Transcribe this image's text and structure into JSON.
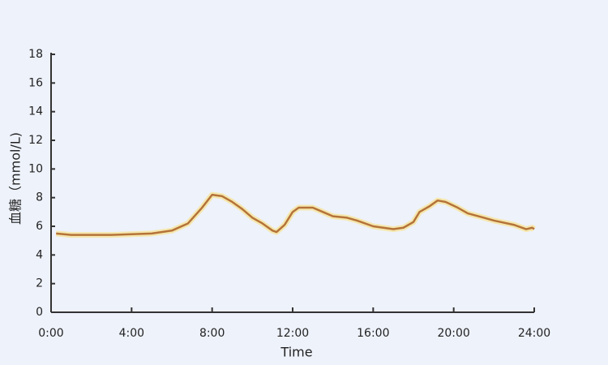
{
  "chart_data": {
    "type": "line",
    "xlabel": "Time",
    "ylabel": "血糖（mmol/L)",
    "x": [
      0.25,
      1,
      2,
      3,
      4,
      5,
      6,
      6.8,
      7.5,
      8,
      8.5,
      9,
      9.5,
      10,
      10.5,
      11,
      11.2,
      11.6,
      12,
      12.3,
      13,
      13.5,
      14,
      14.7,
      15.2,
      16,
      17,
      17.5,
      18,
      18.3,
      18.8,
      19.2,
      19.6,
      20.2,
      20.7,
      21.5,
      22,
      23,
      23.6,
      23.9,
      24
    ],
    "series": [
      {
        "color": "#b5733a",
        "values": [
          5.5,
          5.4,
          5.4,
          5.4,
          5.45,
          5.5,
          5.7,
          6.2,
          7.3,
          8.2,
          8.1,
          7.7,
          7.2,
          6.6,
          6.2,
          5.7,
          5.6,
          6.1,
          7.0,
          7.3,
          7.3,
          7.0,
          6.7,
          6.6,
          6.4,
          6.0,
          5.8,
          5.9,
          6.3,
          7.0,
          7.4,
          7.8,
          7.7,
          7.3,
          6.9,
          6.6,
          6.4,
          6.1,
          5.8,
          5.9,
          5.8
        ]
      }
    ],
    "xlim": [
      0,
      24
    ],
    "xticks": [
      {
        "value": 0,
        "label": "0:00"
      },
      {
        "value": 4,
        "label": "4:00"
      },
      {
        "value": 8,
        "label": "8:00"
      },
      {
        "value": 12,
        "label": "12:00"
      },
      {
        "value": 16,
        "label": "16:00"
      },
      {
        "value": 20,
        "label": "20:00"
      },
      {
        "value": 24,
        "label": "24:00"
      }
    ],
    "ylim": [
      0,
      18
    ],
    "yticks": [
      0,
      2,
      4,
      6,
      8,
      10,
      12,
      14,
      16,
      18
    ]
  }
}
